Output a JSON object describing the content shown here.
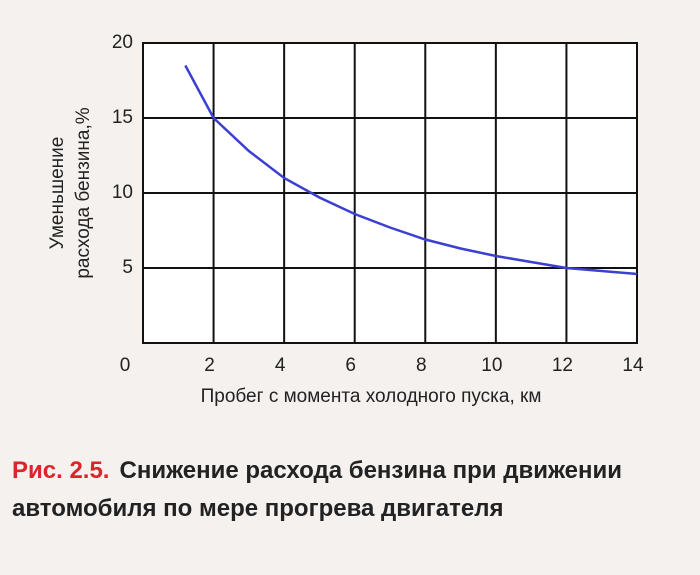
{
  "chart_data": {
    "type": "line",
    "xlabel": "Пробег с момента холодного пуска, км",
    "ylabel": [
      "Уменьшение",
      "расхода бензина,%"
    ],
    "xlim": [
      0,
      14
    ],
    "xticks": [
      0,
      2,
      4,
      6,
      8,
      10,
      12,
      14
    ],
    "ylim": [
      0,
      20
    ],
    "yticks": [
      5,
      10,
      15,
      20
    ],
    "grid": true,
    "series": [
      {
        "color": "#3b3fd2",
        "x": [
          1.2,
          2,
          3,
          4,
          5,
          6,
          7,
          8,
          9,
          10,
          11,
          12,
          13,
          14
        ],
        "values": [
          18.5,
          15,
          12.8,
          11,
          9.7,
          8.6,
          7.7,
          6.9,
          6.3,
          5.8,
          5.4,
          5.0,
          4.8,
          4.6
        ]
      }
    ],
    "caption_label": "Рис. 2.5.",
    "caption": "Снижение расхода бензина при движении автомобиля по мере прогрева двигателя"
  }
}
